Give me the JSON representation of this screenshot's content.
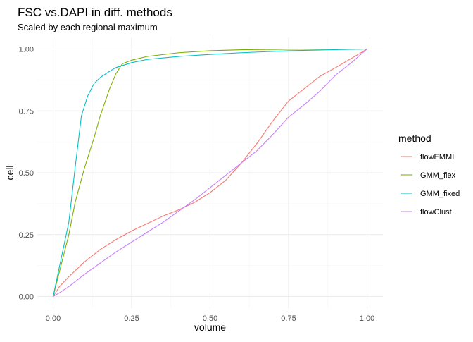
{
  "chart_data": {
    "type": "line",
    "title": "FSC vs.DAPI in diff. methods",
    "subtitle": "Scaled by each regional maximum",
    "xlabel": "volume",
    "ylabel": "cell",
    "xlim": [
      0,
      1
    ],
    "ylim": [
      0,
      1
    ],
    "x_ticks": [
      "0.00",
      "0.25",
      "0.50",
      "0.75",
      "1.00"
    ],
    "y_ticks": [
      "0.00",
      "0.25",
      "0.50",
      "0.75",
      "1.00"
    ],
    "grid": true,
    "legend_title": "method",
    "legend_position": "right",
    "series": [
      {
        "name": "flowEMMI",
        "color": "#F8766D",
        "x": [
          0,
          0.02,
          0.05,
          0.1,
          0.15,
          0.2,
          0.25,
          0.3,
          0.35,
          0.4,
          0.45,
          0.5,
          0.55,
          0.6,
          0.65,
          0.7,
          0.75,
          0.8,
          0.85,
          0.9,
          0.95,
          1.0
        ],
        "y": [
          0,
          0.04,
          0.08,
          0.14,
          0.19,
          0.23,
          0.265,
          0.295,
          0.325,
          0.35,
          0.38,
          0.42,
          0.47,
          0.54,
          0.62,
          0.71,
          0.79,
          0.84,
          0.89,
          0.925,
          0.962,
          1.0
        ]
      },
      {
        "name": "GMM_flex",
        "color": "#7CAE00",
        "x": [
          0,
          0.02,
          0.05,
          0.07,
          0.1,
          0.13,
          0.15,
          0.18,
          0.2,
          0.22,
          0.25,
          0.3,
          0.4,
          0.5,
          0.6,
          0.75,
          1.0
        ],
        "y": [
          0,
          0.1,
          0.25,
          0.38,
          0.52,
          0.64,
          0.73,
          0.84,
          0.9,
          0.94,
          0.955,
          0.97,
          0.985,
          0.993,
          0.997,
          0.999,
          1.0
        ]
      },
      {
        "name": "GMM_fixed",
        "color": "#00BFC4",
        "x": [
          0,
          0.02,
          0.05,
          0.07,
          0.09,
          0.11,
          0.13,
          0.15,
          0.18,
          0.2,
          0.25,
          0.3,
          0.4,
          0.5,
          0.6,
          0.75,
          1.0
        ],
        "y": [
          0,
          0.12,
          0.3,
          0.52,
          0.73,
          0.81,
          0.86,
          0.885,
          0.91,
          0.925,
          0.945,
          0.958,
          0.97,
          0.978,
          0.985,
          0.993,
          1.0
        ]
      },
      {
        "name": "flowClust",
        "color": "#C77CFF",
        "x": [
          0,
          0.02,
          0.05,
          0.1,
          0.15,
          0.2,
          0.25,
          0.3,
          0.35,
          0.4,
          0.45,
          0.5,
          0.55,
          0.6,
          0.65,
          0.7,
          0.75,
          0.8,
          0.85,
          0.9,
          0.95,
          1.0
        ],
        "y": [
          0,
          0.015,
          0.04,
          0.09,
          0.135,
          0.18,
          0.22,
          0.26,
          0.3,
          0.345,
          0.39,
          0.44,
          0.49,
          0.54,
          0.59,
          0.655,
          0.725,
          0.775,
          0.83,
          0.895,
          0.945,
          1.0
        ]
      }
    ]
  }
}
